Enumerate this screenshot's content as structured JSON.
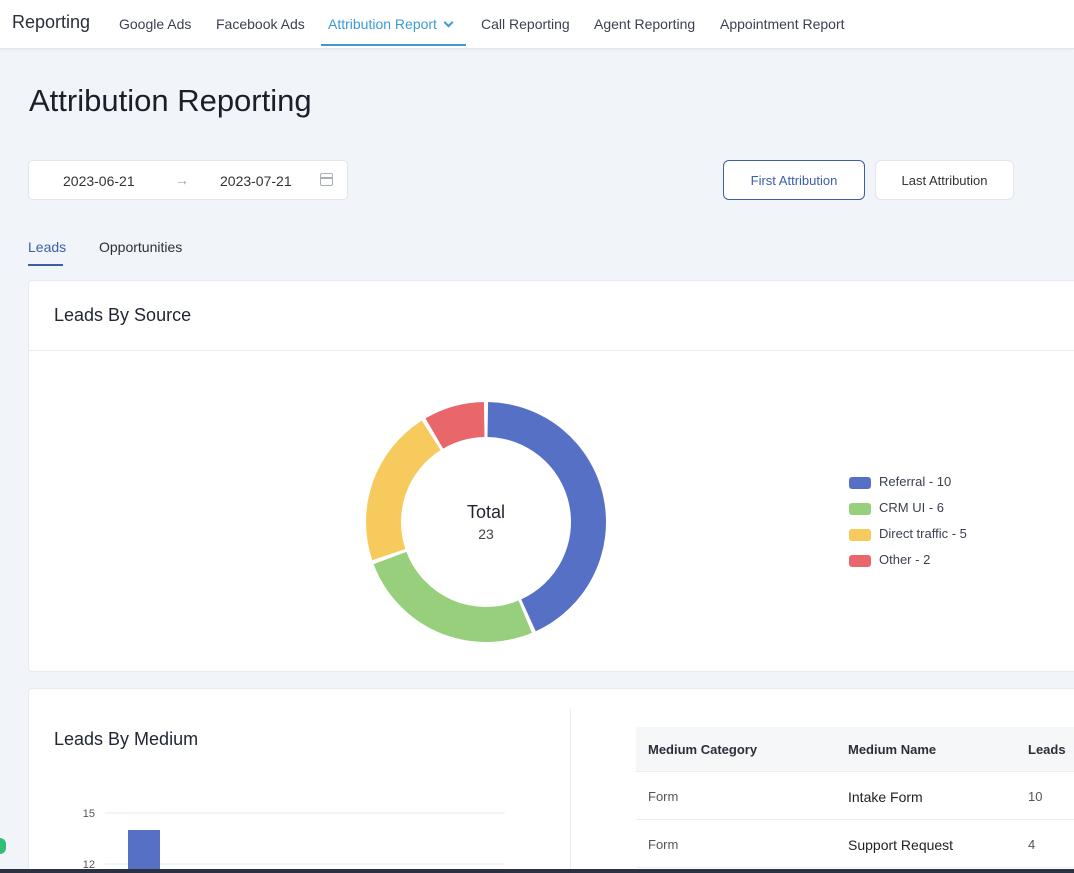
{
  "nav": {
    "brand": "Reporting",
    "tabs": [
      {
        "label": "Google Ads"
      },
      {
        "label": "Facebook Ads"
      },
      {
        "label": "Attribution Report"
      },
      {
        "label": "Call Reporting"
      },
      {
        "label": "Agent Reporting"
      },
      {
        "label": "Appointment Report"
      }
    ],
    "active_tab": "Attribution Report"
  },
  "page": {
    "title": "Attribution Reporting"
  },
  "date_range": {
    "start": "2023-06-21",
    "end": "2023-07-21",
    "arrow": "→"
  },
  "attribution_buttons": {
    "first": "First Attribution",
    "last": "Last Attribution",
    "selected": "First Attribution"
  },
  "subtabs": [
    {
      "label": "Leads"
    },
    {
      "label": "Opportunities"
    }
  ],
  "leads_by_source": {
    "title": "Leads By Source",
    "total_label": "Total",
    "total_value": "23",
    "legend": [
      {
        "label": "Referral - 10",
        "color": "#5670c6"
      },
      {
        "label": "CRM UI - 6",
        "color": "#97cf7c"
      },
      {
        "label": "Direct traffic - 5",
        "color": "#f7ca5e"
      },
      {
        "label": "Other - 2",
        "color": "#e9666b"
      }
    ]
  },
  "chart_data": [
    {
      "type": "pie",
      "title": "Leads By Source",
      "categories": [
        "Referral",
        "CRM UI",
        "Direct traffic",
        "Other"
      ],
      "values": [
        10,
        6,
        5,
        2
      ],
      "colors": [
        "#5670c6",
        "#97cf7c",
        "#f7ca5e",
        "#e9666b"
      ],
      "total": 23,
      "donut": true,
      "legend": "right"
    },
    {
      "type": "bar",
      "title": "Leads By Medium",
      "yticks": [
        "15",
        "12"
      ],
      "values": [
        14
      ],
      "colors": [
        "#5670c6"
      ],
      "grid": true
    }
  ],
  "leads_by_medium": {
    "title": "Leads By Medium",
    "table": {
      "headers": [
        "Medium Category",
        "Medium Name",
        "Leads"
      ],
      "rows": [
        [
          "Form",
          "Intake Form",
          "10"
        ],
        [
          "Form",
          "Support Request",
          "4"
        ]
      ]
    }
  }
}
